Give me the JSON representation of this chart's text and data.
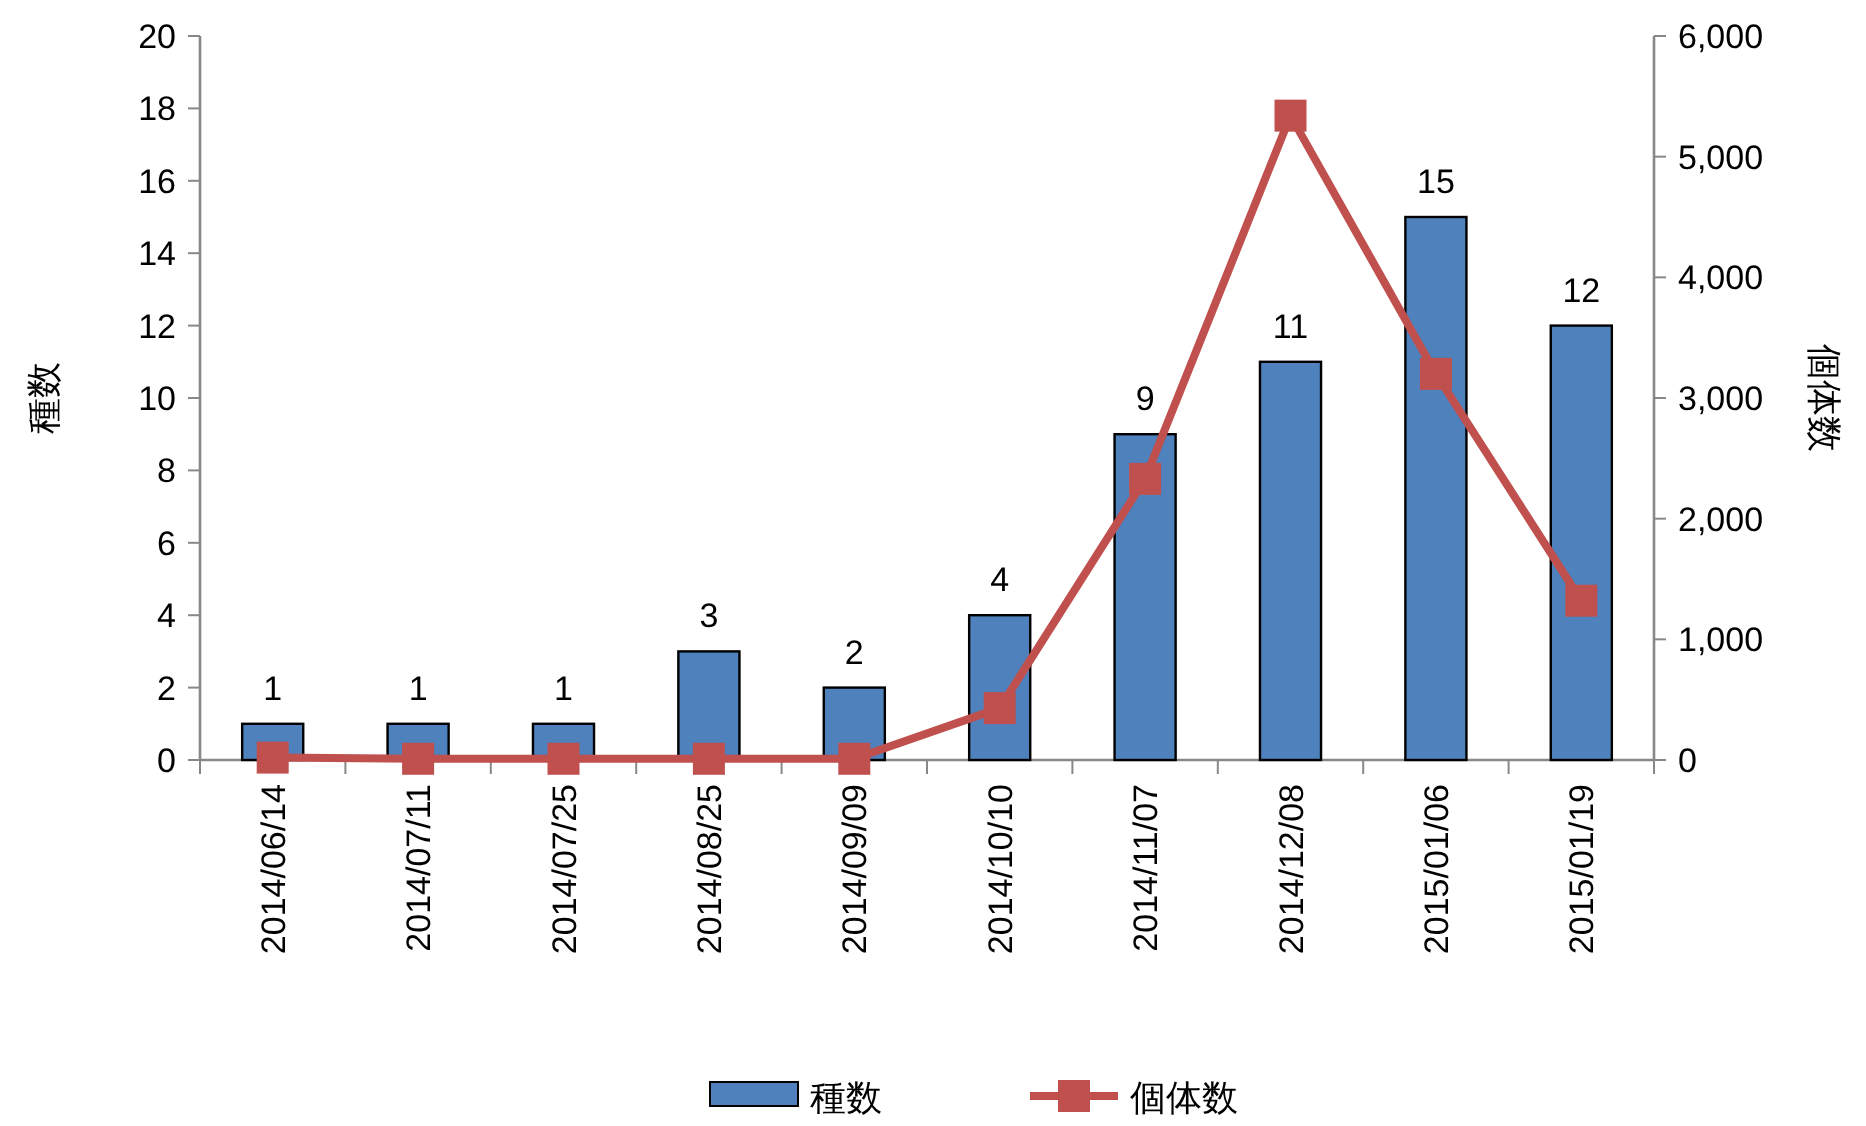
{
  "chart_data": {
    "type": "bar",
    "categories": [
      "2014/06/14",
      "2014/07/11",
      "2014/07/25",
      "2014/08/25",
      "2014/09/09",
      "2014/10/10",
      "2014/11/07",
      "2014/12/08",
      "2015/01/06",
      "2015/01/19"
    ],
    "series": [
      {
        "name": "種数",
        "color": "#4f81bd",
        "values": [
          1,
          1,
          1,
          3,
          2,
          4,
          9,
          11,
          15,
          12
        ],
        "value_labels": [
          "1",
          "1",
          "1",
          "3",
          "2",
          "4",
          "9",
          "11",
          "15",
          "12"
        ]
      },
      {
        "name": "個体数",
        "type": "line",
        "axis": "y2",
        "color": "#c0504d",
        "values": [
          20,
          10,
          10,
          10,
          10,
          430,
          2330,
          5340,
          3200,
          1320
        ]
      }
    ],
    "marker": "square",
    "line_style": "solid",
    "ylabel": "種数",
    "y2label": "個体数",
    "ylim": [
      0,
      20
    ],
    "yticks": [
      0,
      2,
      4,
      6,
      8,
      10,
      12,
      14,
      16,
      18,
      20
    ],
    "y2lim": [
      0,
      6000
    ],
    "y2ticks": [
      {
        "value": 0,
        "label": "0"
      },
      {
        "value": 1000,
        "label": "1,000"
      },
      {
        "value": 2000,
        "label": "2,000"
      },
      {
        "value": 3000,
        "label": "3,000"
      },
      {
        "value": 4000,
        "label": "4,000"
      },
      {
        "value": 5000,
        "label": "5,000"
      },
      {
        "value": 6000,
        "label": "6,000"
      }
    ],
    "legend": "bottom",
    "grid": false
  }
}
